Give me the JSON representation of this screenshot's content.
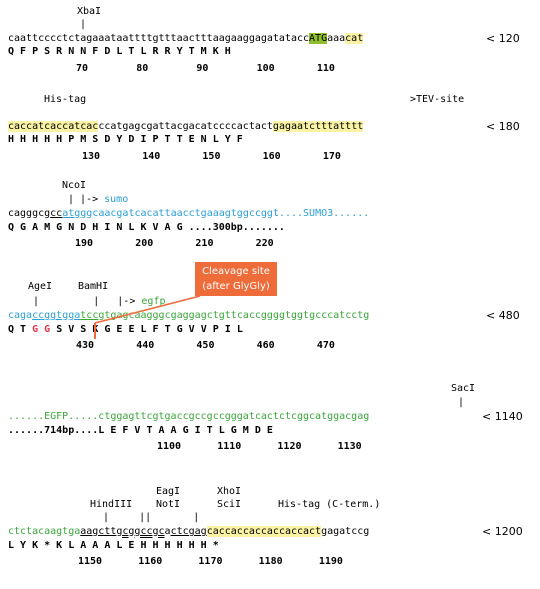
{
  "block1": {
    "site_label": "XbaI",
    "site_tick": "|",
    "dna_pre": "caattcccctctagaaataattttgtttaactttaagaaggagatatacc",
    "dna_start": "ATG",
    "dna_mid": "aaa",
    "dna_end": "cat",
    "position": "< 120",
    "aa": "Q F P S R N N F D L T L R R Y T M K H",
    "numbers": "70        80        90        100       110"
  },
  "block2": {
    "label_his": "His-tag",
    "label_tev": ">TEV-site",
    "dna_his": "caccatcaccatcac",
    "dna_mid": "ccatgagcgattacgacatccccactact",
    "dna_tev": "gagaatctttatttt",
    "position": "< 180",
    "aa": "H H H H H P M S D Y D I P T T E N L Y F",
    "numbers": "130       140       150       160       170"
  },
  "block3": {
    "site_label": "NcoI",
    "site_tick": "| |->",
    "gene_label": "sumo",
    "dna_pre": "cagggcg",
    "dna_ul": "cc",
    "dna_blue_ul": "atgg",
    "dna_blue": "gcaacgatcacattaacctgaaagtggccggt....SUMO3......",
    "aa": "Q G A M G N D H I N L K V A G ....300bp.......",
    "numbers": "190       200       210       220"
  },
  "block4": {
    "label_agei": "AgeI",
    "label_bamhi": "BamHI",
    "ticks": "|         |   |->",
    "gene_label": "egfp",
    "dna_a": "caga",
    "dna_agei": "ccggt",
    "dna_b": "g",
    "dna_bamhi": "ga",
    "dna_c": "tccg",
    "dna_green": "tgagcaagggcgaggagctgttcaccggggtggtgcccatcctg",
    "position": "< 480",
    "aa_pre": "Q T ",
    "aa_gg1": "G",
    "aa_gg2": "G",
    "aa_post": " S V S K G E E L F T G V V P I L",
    "numbers": "430       440       450       460       470",
    "callout_line1": "Cleavage site",
    "callout_line2": "(after GlyGly)"
  },
  "block5": {
    "site_label": "SacI",
    "site_tick": "|",
    "dna_green": "......EGFP.....ctggagttcgtgaccgccgccgggatcactctcggcatggacgag",
    "position": "< 1140",
    "aa": "......714bp....L E F V T A A G I T L G M D E",
    "numbers": "1100      1110      1120      1130"
  },
  "block6": {
    "label_eagi": "EagI",
    "label_xhoi": "XhoI",
    "label_hindiii": "HindIII",
    "label_noti": "NotI",
    "label_scii": "SciI",
    "label_his": "His-tag (C-term.)",
    "ticks": "|     ||       |",
    "dna_green": "ctctacaagtga",
    "dna_hind": "aagctt",
    "dna_not": "gcggccgc",
    "dna_a": "a",
    "dna_xho": "ctcgag",
    "dna_his": "caccaccaccaccaccact",
    "dna_end": "gagatccg",
    "position": "< 1200",
    "aa": "L Y K * K L A A A L E H H H H H H *",
    "numbers": "1150      1160      1170      1180      1190"
  }
}
